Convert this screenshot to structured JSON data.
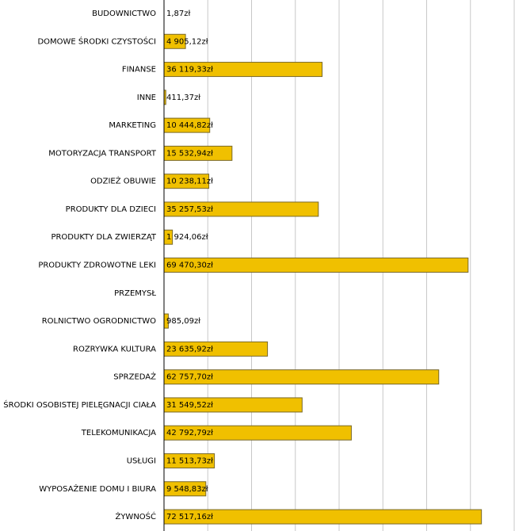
{
  "chart_data": {
    "type": "hbar",
    "categories": [
      "BUDOWNICTWO",
      "DOMOWE ŚRODKI CZYSTOŚCI",
      "FINANSE",
      "INNE",
      "MARKETING",
      "MOTORYZACJA TRANSPORT",
      "ODZIEŻ OBUWIE",
      "PRODUKTY DLA DZIECI",
      "PRODUKTY DLA ZWIERZĄT",
      "PRODUKTY ZDROWOTNE LEKI",
      "PRZEMYSŁ",
      "ROLNICTWO OGRODNICTWO",
      "ROZRYWKA KULTURA",
      "SPRZEDAŻ",
      "ŚRODKI OSOBISTEJ PIELĘGNACJI CIAŁA",
      "TELEKOMUNIKACJA",
      "USŁUGI",
      "WYPOSAŻENIE DOMU I BIURA",
      "ŻYWNOŚĆ"
    ],
    "values": [
      1.87,
      4905.12,
      36119.33,
      411.37,
      10444.82,
      15532.94,
      10238.11,
      35257.53,
      1924.06,
      69470.3,
      null,
      985.09,
      23635.92,
      62757.7,
      31549.52,
      42792.79,
      11513.73,
      9548.83,
      72517.16
    ],
    "value_labels": [
      "1,87zł",
      "4 905,12zł",
      "36 119,33zł",
      "411,37zł",
      "10 444,82zł",
      "15 532,94zł",
      "10 238,11zł",
      "35 257,53zł",
      "1 924,06zł",
      "69 470,30zł",
      null,
      "985,09zł",
      "23 635,92zł",
      "62 757,70zł",
      "31 549,52zł",
      "42 792,79zł",
      "11 513,73zł",
      "9 548,83zł",
      "72 517,16zł"
    ],
    "color": "#f0c000",
    "xlim": [
      0,
      80000
    ],
    "xticks": [
      0,
      10000,
      20000,
      30000,
      40000,
      50000,
      60000,
      70000,
      80000
    ],
    "grid": true
  }
}
